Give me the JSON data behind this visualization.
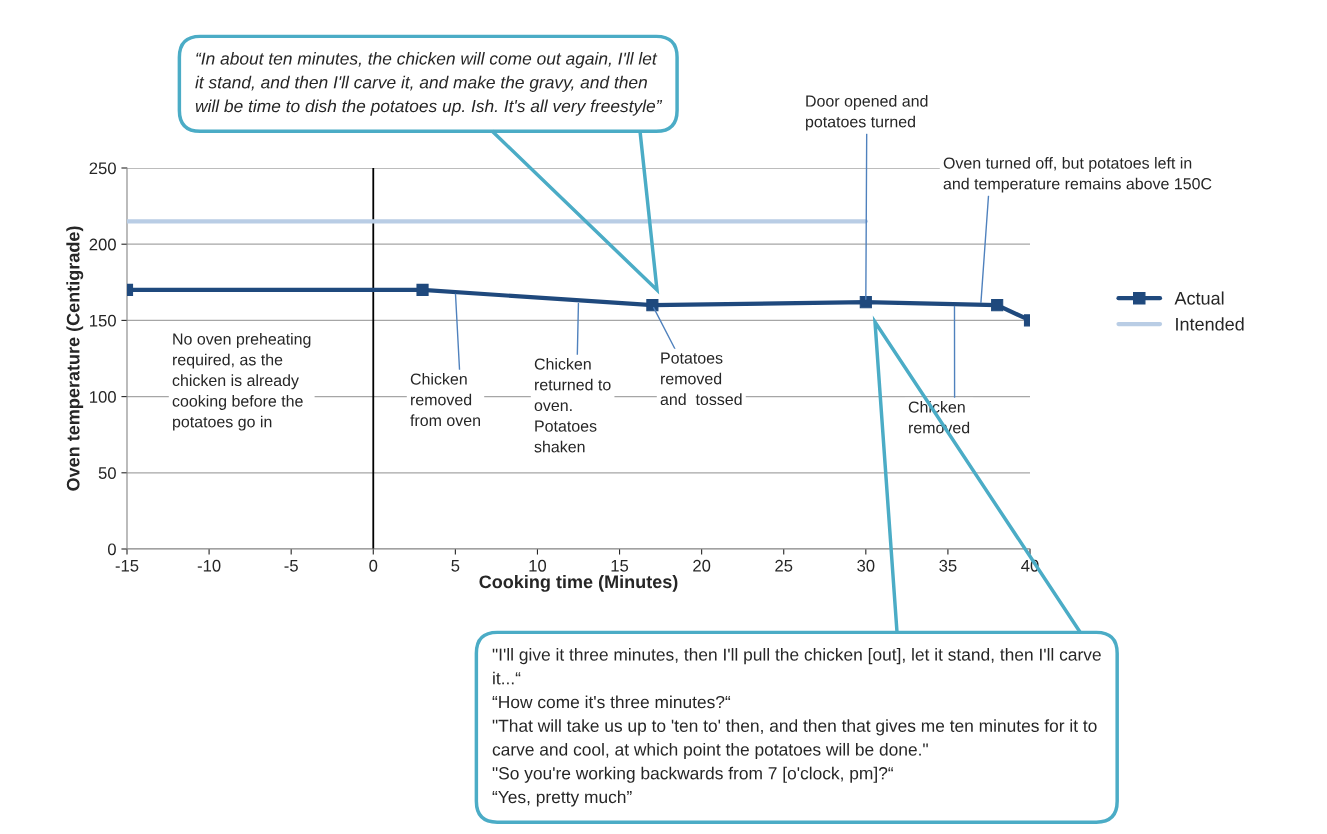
{
  "chart_data": {
    "type": "line",
    "xlabel": "Cooking time (Minutes)",
    "ylabel": "Oven temperature (Centigrade)",
    "series": [
      {
        "name": "Actual",
        "color": "#1f497d",
        "marker": "square",
        "x": [
          -15,
          3,
          17,
          30,
          38,
          40
        ],
        "values": [
          170,
          170,
          160,
          162,
          160,
          150
        ]
      },
      {
        "name": "Intended",
        "color": "#b9cde5",
        "marker": "none",
        "x": [
          -15,
          30
        ],
        "values": [
          215,
          215
        ]
      }
    ],
    "xlim": [
      -15,
      40
    ],
    "xticks": [
      -15,
      -10,
      -5,
      0,
      5,
      10,
      15,
      20,
      25,
      30,
      35,
      40
    ],
    "ylim": [
      0,
      250
    ],
    "yticks": [
      0,
      50,
      100,
      150,
      200,
      250
    ],
    "grid": "y",
    "legend": "right",
    "line_style": "solid",
    "ref_lines": [
      {
        "axis": "x",
        "value": 0,
        "color": "#000000"
      }
    ],
    "annotations": [
      "“In about ten minutes, the chicken will come out again, I'll let\nit stand, and then I'll carve it, and make the gravy, and then\nwill be time to dish the potatoes up. Ish. It's all very freestyle”",
      {
        "text": "Door opened and\npotatoes turned",
        "x": 30,
        "y": 162
      },
      {
        "text": "Oven turned off, but potatoes left in\nand temperature remains above 150C",
        "x": 37,
        "y": 160
      },
      "No oven preheating\nrequired, as the\nchicken is already\ncooking before the\npotatoes go in",
      {
        "text": "Chicken\nremoved\nfrom oven",
        "x": 5,
        "y": 169
      },
      {
        "text": "Chicken\nreturned to\noven.\nPotatoes\nshaken",
        "x": 12.5,
        "y": 163
      },
      {
        "text": "Potatoes\nremoved\nand  tossed",
        "x": 17,
        "y": 160
      },
      {
        "text": "Chicken\nremoved",
        "x": 35.4,
        "y": 161
      },
      "\"I'll give it three minutes, then I'll pull the chicken [out], let it stand, then I'll carve\nit...“\n“How come it's three minutes?“\n\"That will take us up to 'ten to' then, and then that gives me ten minutes for it to\ncarve and cool, at which point the potatoes will be done.\"\n\"So you're working backwards from 7 [o'clock, pm]?“\n“Yes, pretty much”"
    ]
  }
}
